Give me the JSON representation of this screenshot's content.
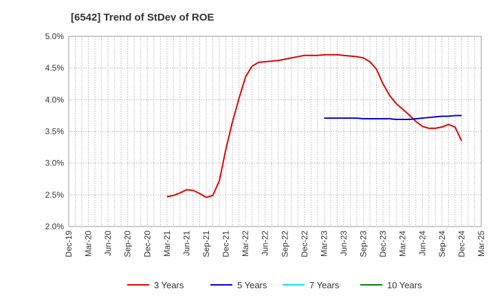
{
  "chart_data": {
    "type": "line",
    "title": "[6542]  Trend of StDev of ROE",
    "xlabel": "",
    "ylabel": "",
    "x_tick_labels": [
      "Dec-19",
      "Mar-20",
      "Jun-20",
      "Sep-20",
      "Dec-20",
      "Mar-21",
      "Jun-21",
      "Sep-21",
      "Dec-21",
      "Mar-22",
      "Jun-22",
      "Sep-22",
      "Dec-22",
      "Mar-23",
      "Jun-23",
      "Sep-23",
      "Dec-23",
      "Mar-24",
      "Jun-24",
      "Sep-24",
      "Dec-24",
      "Mar-25"
    ],
    "y_tick_labels": [
      "2.0%",
      "2.5%",
      "3.0%",
      "3.5%",
      "4.0%",
      "4.5%",
      "5.0%"
    ],
    "ylim": [
      2.0,
      5.0
    ],
    "x_range_months": [
      "2019-12",
      "2025-03"
    ],
    "grid": true,
    "legend_position": "bottom",
    "series": [
      {
        "name": "3 Years",
        "color": "#dd0000",
        "points": [
          [
            "2021-03",
            2.47
          ],
          [
            "2021-04",
            2.49
          ],
          [
            "2021-05",
            2.53
          ],
          [
            "2021-06",
            2.58
          ],
          [
            "2021-07",
            2.57
          ],
          [
            "2021-08",
            2.52
          ],
          [
            "2021-09",
            2.46
          ],
          [
            "2021-10",
            2.49
          ],
          [
            "2021-11",
            2.72
          ],
          [
            "2021-12",
            3.22
          ],
          [
            "2022-01",
            3.65
          ],
          [
            "2022-02",
            4.02
          ],
          [
            "2022-03",
            4.36
          ],
          [
            "2022-04",
            4.53
          ],
          [
            "2022-05",
            4.59
          ],
          [
            "2022-06",
            4.6
          ],
          [
            "2022-07",
            4.61
          ],
          [
            "2022-08",
            4.62
          ],
          [
            "2022-09",
            4.64
          ],
          [
            "2022-10",
            4.66
          ],
          [
            "2022-11",
            4.68
          ],
          [
            "2022-12",
            4.7
          ],
          [
            "2023-01",
            4.7
          ],
          [
            "2023-02",
            4.7
          ],
          [
            "2023-03",
            4.71
          ],
          [
            "2023-04",
            4.71
          ],
          [
            "2023-05",
            4.71
          ],
          [
            "2023-06",
            4.7
          ],
          [
            "2023-07",
            4.69
          ],
          [
            "2023-08",
            4.68
          ],
          [
            "2023-09",
            4.66
          ],
          [
            "2023-10",
            4.6
          ],
          [
            "2023-11",
            4.48
          ],
          [
            "2023-12",
            4.25
          ],
          [
            "2024-01",
            4.07
          ],
          [
            "2024-02",
            3.94
          ],
          [
            "2024-03",
            3.85
          ],
          [
            "2024-04",
            3.76
          ],
          [
            "2024-05",
            3.66
          ],
          [
            "2024-06",
            3.58
          ],
          [
            "2024-07",
            3.55
          ],
          [
            "2024-08",
            3.55
          ],
          [
            "2024-09",
            3.57
          ],
          [
            "2024-10",
            3.61
          ],
          [
            "2024-11",
            3.57
          ],
          [
            "2024-12",
            3.35
          ]
        ]
      },
      {
        "name": "5 Years",
        "color": "#0000cc",
        "points": [
          [
            "2023-03",
            3.71
          ],
          [
            "2023-04",
            3.71
          ],
          [
            "2023-05",
            3.71
          ],
          [
            "2023-06",
            3.71
          ],
          [
            "2023-07",
            3.71
          ],
          [
            "2023-08",
            3.71
          ],
          [
            "2023-09",
            3.7
          ],
          [
            "2023-10",
            3.7
          ],
          [
            "2023-11",
            3.7
          ],
          [
            "2023-12",
            3.7
          ],
          [
            "2024-01",
            3.7
          ],
          [
            "2024-02",
            3.69
          ],
          [
            "2024-03",
            3.69
          ],
          [
            "2024-04",
            3.69
          ],
          [
            "2024-05",
            3.7
          ],
          [
            "2024-06",
            3.71
          ],
          [
            "2024-07",
            3.72
          ],
          [
            "2024-08",
            3.73
          ],
          [
            "2024-09",
            3.74
          ],
          [
            "2024-10",
            3.74
          ],
          [
            "2024-11",
            3.75
          ],
          [
            "2024-12",
            3.75
          ]
        ]
      },
      {
        "name": "7 Years",
        "color": "#00e5e5",
        "points": []
      },
      {
        "name": "10 Years",
        "color": "#008000",
        "points": []
      }
    ]
  }
}
